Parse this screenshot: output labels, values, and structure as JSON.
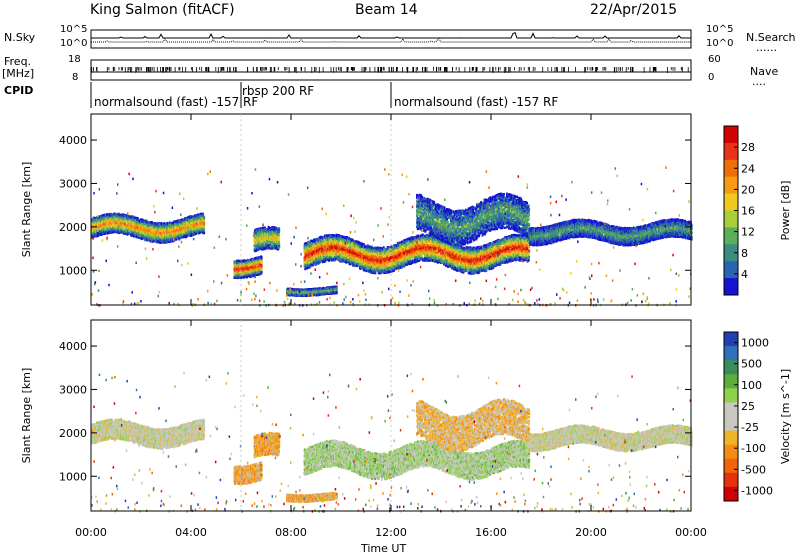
{
  "header": {
    "station": "King Salmon (fitACF)",
    "beam": "Beam 14",
    "date": "22/Apr/2015"
  },
  "side_labels": {
    "nsky": "N.Sky",
    "freq": "Freq.",
    "freq_unit": "[MHz]",
    "cpid": "CPID",
    "nsearch": "N.Search",
    "nave": "Nave",
    "dots": "......",
    "dots_short": "...."
  },
  "small_axes": {
    "noise_ticks": [
      "10^5",
      "10^0"
    ],
    "freq_ticks": [
      "18",
      "8"
    ],
    "nave_ticks": [
      "60",
      "0"
    ]
  },
  "cpid_segments": [
    {
      "label": "normalsound (fast) -157 RF",
      "start_hour": 0.0
    },
    {
      "label": "rbsp 200 RF",
      "start_hour": 6.0
    },
    {
      "label": "normalsound (fast) -157 RF",
      "start_hour": 12.0
    }
  ],
  "x_axis": {
    "label": "Time UT",
    "ticks": [
      "00:00",
      "04:00",
      "08:00",
      "12:00",
      "16:00",
      "20:00",
      "00:00"
    ]
  },
  "y_axis": {
    "label": "Slant Range [km]",
    "ticks": [
      "1000",
      "2000",
      "3000",
      "4000"
    ]
  },
  "colorbars": {
    "power": {
      "label": "Power [dB]",
      "ticks": [
        "4",
        "8",
        "12",
        "16",
        "20",
        "24",
        "28"
      ],
      "colors": [
        "#1414d2",
        "#2c64b4",
        "#3b8c82",
        "#5cae5a",
        "#a8cf3a",
        "#f0c81e",
        "#f59c14",
        "#f06e0a",
        "#e8321a",
        "#d20000"
      ]
    },
    "velocity": {
      "label": "Velocity [m s^-1]",
      "ticks": [
        "1000",
        "500",
        "100",
        "25",
        "-25",
        "-100",
        "-500",
        "-1000"
      ],
      "colors": [
        "#2040b4",
        "#3070b8",
        "#3b8c5a",
        "#5cae3a",
        "#8cd24a",
        "#c8c8c0",
        "#c8c8c0",
        "#f0b428",
        "#f58c14",
        "#f0640a",
        "#e6320a",
        "#d20000"
      ]
    }
  },
  "chart_data": [
    {
      "type": "heatmap",
      "title": "Power",
      "xlabel": "Time UT",
      "ylabel": "Slant Range [km]",
      "xlim": [
        0,
        24
      ],
      "ylim": [
        200,
        4600
      ],
      "colorbar_range": [
        0,
        30
      ],
      "echo_regions": [
        {
          "t_start": 0.0,
          "t_end": 4.5,
          "range_center": 2000,
          "range_width": 450,
          "peak": 22
        },
        {
          "t_start": 5.7,
          "t_end": 6.8,
          "range_center": 1150,
          "range_width": 400,
          "peak": 28
        },
        {
          "t_start": 6.5,
          "t_end": 7.5,
          "range_center": 1650,
          "range_width": 500,
          "peak": 18
        },
        {
          "t_start": 7.8,
          "t_end": 9.8,
          "range_center": 550,
          "range_width": 150,
          "peak": 12
        },
        {
          "t_start": 8.5,
          "t_end": 17.5,
          "range_center": 1400,
          "range_width": 600,
          "peak": 28
        },
        {
          "t_start": 13.0,
          "t_end": 17.5,
          "range_center": 2200,
          "range_width": 800,
          "peak": 10
        },
        {
          "t_start": 17.5,
          "t_end": 24.0,
          "range_center": 1900,
          "range_width": 400,
          "peak": 10
        }
      ]
    },
    {
      "type": "heatmap",
      "title": "Velocity",
      "xlabel": "Time UT",
      "ylabel": "Slant Range [km]",
      "xlim": [
        0,
        24
      ],
      "ylim": [
        200,
        4600
      ],
      "colorbar_range": [
        -1000,
        1000
      ],
      "echo_regions": [
        {
          "t_start": 0.0,
          "t_end": 4.5,
          "range_center": 2000,
          "range_width": 450,
          "velocity": 0
        },
        {
          "t_start": 5.7,
          "t_end": 6.8,
          "range_center": 1150,
          "range_width": 400,
          "velocity": -300
        },
        {
          "t_start": 6.5,
          "t_end": 7.5,
          "range_center": 1650,
          "range_width": 500,
          "velocity": -300
        },
        {
          "t_start": 7.8,
          "t_end": 9.8,
          "range_center": 550,
          "range_width": 150,
          "velocity": -300
        },
        {
          "t_start": 8.5,
          "t_end": 17.5,
          "range_center": 1400,
          "range_width": 600,
          "velocity": 150
        },
        {
          "t_start": 13.0,
          "t_end": 17.5,
          "range_center": 2200,
          "range_width": 800,
          "velocity": -200
        },
        {
          "t_start": 17.5,
          "t_end": 24.0,
          "range_center": 1900,
          "range_width": 400,
          "velocity": 0
        }
      ]
    }
  ]
}
